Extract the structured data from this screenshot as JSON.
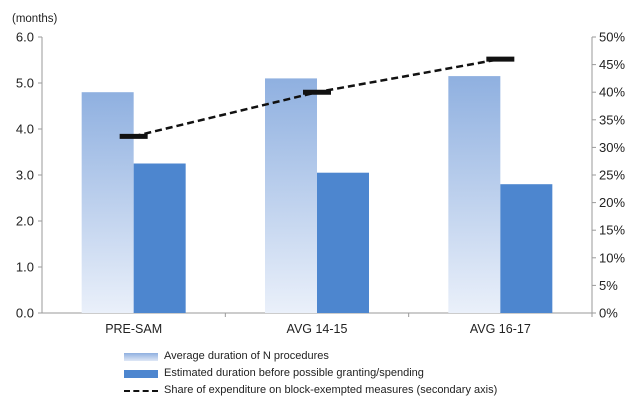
{
  "chart_data": {
    "type": "bar",
    "y_unit_label": "(months)",
    "categories": [
      "PRE-SAM",
      "AVG 14-15",
      "AVG 16-17"
    ],
    "ylim": [
      0,
      6
    ],
    "y_ticks": [
      "0.0",
      "1.0",
      "2.0",
      "3.0",
      "4.0",
      "5.0",
      "6.0"
    ],
    "y2lim": [
      0,
      50
    ],
    "y2_ticks": [
      "0%",
      "5%",
      "10%",
      "15%",
      "20%",
      "25%",
      "30%",
      "35%",
      "40%",
      "45%",
      "50%"
    ],
    "grid": false,
    "legend_position": "bottom",
    "series": [
      {
        "name": "Average duration of N procedures",
        "type": "bar",
        "axis": "primary",
        "values": [
          4.8,
          5.1,
          5.15
        ],
        "color_top": "#8fb0e0",
        "color_bottom": "#eaf0fa"
      },
      {
        "name": "Estimated duration before possible granting/spending",
        "type": "bar",
        "axis": "primary",
        "values": [
          3.25,
          3.05,
          2.8
        ],
        "color": "#4d86cf"
      },
      {
        "name": "Share of expenditure on block-exempted measures (secondary axis)",
        "type": "line",
        "axis": "secondary",
        "values": [
          32,
          40,
          46
        ],
        "color": "#111111",
        "dashed": true
      }
    ]
  }
}
